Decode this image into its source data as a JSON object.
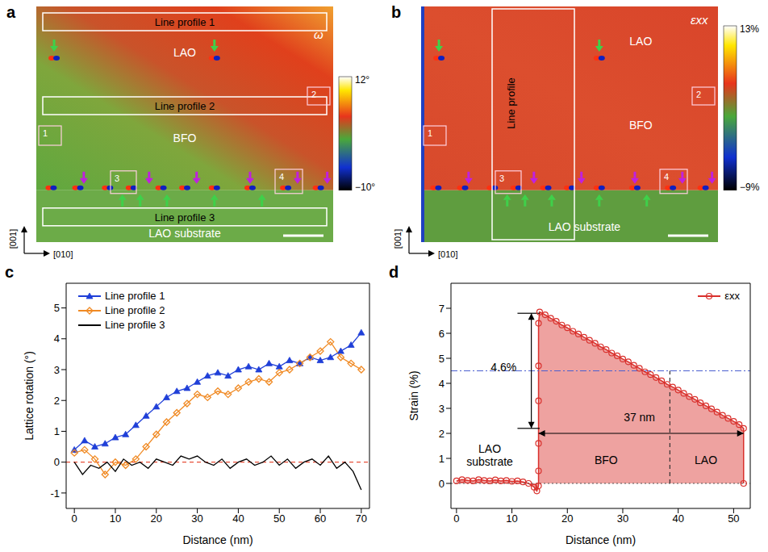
{
  "maps": [
    {
      "panel": "a",
      "colorbar": {
        "label": "ω",
        "range": [
          -10,
          12
        ],
        "ticks": [
          {
            "value": 12,
            "label": "12°"
          },
          {
            "value": -10,
            "label": "−10°"
          }
        ]
      },
      "line_profiles": [
        "Line profile 1",
        "Line profile 2",
        "Line profile 3"
      ],
      "regions": [
        "LAO",
        "BFO",
        "LAO substrate"
      ],
      "boxes": [
        "1",
        "2",
        "3",
        "4"
      ],
      "directions": [
        "[001]",
        "[010]"
      ]
    },
    {
      "panel": "b",
      "colorbar": {
        "label": "εxx",
        "range": [
          -9,
          13
        ],
        "ticks": [
          {
            "value": 13,
            "label": "13%"
          },
          {
            "value": -9,
            "label": "−9%"
          }
        ]
      },
      "line_profiles": [
        "Line profile"
      ],
      "regions": [
        "LAO",
        "BFO",
        "LAO substrate"
      ],
      "boxes": [
        "1",
        "2",
        "3",
        "4"
      ],
      "directions": [
        "[001]",
        "[010]"
      ]
    }
  ],
  "chart_data": [
    {
      "panel": "c",
      "type": "line",
      "x_label": "Distance (nm)",
      "y_label": "Lattice rotation (°)",
      "xlim": [
        -2,
        72
      ],
      "xticks": [
        0,
        10,
        20,
        30,
        40,
        50,
        60,
        70
      ],
      "ylim": [
        -1.5,
        5.8
      ],
      "yticks": [
        -1,
        0,
        1,
        2,
        3,
        4,
        5
      ],
      "legend": "upper left",
      "reference_lines": [
        {
          "y": 0,
          "line_style": "dashed",
          "color": "#e8503a"
        }
      ],
      "series": [
        {
          "name": "Line profile 1",
          "color": "#1f3fd8",
          "marker": "triangle",
          "x": [
            0,
            2.5,
            5,
            7.5,
            10,
            12.5,
            15,
            17.5,
            20,
            22.5,
            25,
            27.5,
            30,
            32.5,
            35,
            37.5,
            40,
            42.5,
            45,
            47.5,
            50,
            52.5,
            55,
            57.5,
            60,
            62.5,
            65,
            67.5,
            70
          ],
          "values": [
            0.4,
            0.7,
            0.5,
            0.6,
            0.8,
            0.9,
            1.2,
            1.5,
            1.8,
            2.1,
            2.3,
            2.4,
            2.6,
            2.8,
            2.9,
            2.8,
            3.0,
            3.1,
            3.0,
            3.2,
            3.1,
            3.3,
            3.2,
            3.4,
            3.3,
            3.4,
            3.6,
            3.8,
            4.2
          ]
        },
        {
          "name": "Line profile 2",
          "color": "#f08a24",
          "marker": "diamond",
          "x": [
            0,
            2.5,
            5,
            7.5,
            10,
            12.5,
            15,
            17.5,
            20,
            22.5,
            25,
            27.5,
            30,
            32.5,
            35,
            37.5,
            40,
            42.5,
            45,
            47.5,
            50,
            52.5,
            55,
            57.5,
            60,
            62.5,
            65,
            67.5,
            70
          ],
          "values": [
            0.3,
            0.4,
            0.1,
            -0.4,
            0.0,
            -0.1,
            0.1,
            0.5,
            0.9,
            1.3,
            1.6,
            1.9,
            2.2,
            2.1,
            2.3,
            2.2,
            2.4,
            2.6,
            2.7,
            2.6,
            2.9,
            3.0,
            3.2,
            3.4,
            3.6,
            3.9,
            3.4,
            3.2,
            3.0
          ]
        },
        {
          "name": "Line profile 3",
          "color": "#000000",
          "marker": "none",
          "x": [
            0,
            2,
            4,
            6,
            8,
            10,
            12,
            14,
            16,
            18,
            20,
            22,
            24,
            26,
            28,
            30,
            32,
            34,
            36,
            38,
            40,
            42,
            44,
            46,
            48,
            50,
            52,
            54,
            56,
            58,
            60,
            62,
            64,
            66,
            68,
            70
          ],
          "values": [
            0,
            -0.4,
            -0.1,
            -0.2,
            0.0,
            -0.3,
            0.1,
            -0.1,
            0.0,
            -0.2,
            0.1,
            0.0,
            -0.1,
            0.2,
            0.1,
            0.2,
            0.0,
            -0.1,
            0.1,
            -0.2,
            0.0,
            0.1,
            -0.1,
            0.0,
            0.2,
            -0.1,
            0.1,
            -0.2,
            0.0,
            0.1,
            -0.1,
            0.2,
            -0.2,
            0.0,
            -0.3,
            -0.9
          ]
        }
      ]
    },
    {
      "panel": "d",
      "type": "area",
      "x_label": "Distance (nm)",
      "y_label": "Strain (%)",
      "xlim": [
        -1,
        53
      ],
      "xticks": [
        0,
        10,
        20,
        30,
        40,
        50
      ],
      "ylim": [
        -1,
        8
      ],
      "yticks": [
        0,
        1,
        2,
        3,
        4,
        5,
        6,
        7
      ],
      "legend": "upper right",
      "series": [
        {
          "name": "εxx",
          "color": "#d9302c",
          "marker": "circle",
          "x": [
            0,
            1,
            2,
            3,
            4,
            5,
            6,
            7,
            8,
            9,
            10,
            11,
            12,
            13,
            14,
            14.5,
            14.8,
            14.8,
            14.8,
            14.8,
            14.8,
            14.8,
            15,
            16,
            17,
            18,
            19,
            20,
            21,
            22,
            23,
            24,
            25,
            26,
            27,
            28,
            29,
            30,
            31,
            32,
            33,
            34,
            35,
            36,
            37,
            38,
            39,
            40,
            41,
            42,
            43,
            44,
            45,
            46,
            47,
            48,
            49,
            50,
            51,
            51.8,
            51.8
          ],
          "values": [
            0.1,
            0.15,
            0.12,
            0.1,
            0.15,
            0.12,
            0.1,
            0.14,
            0.1,
            0.12,
            0.08,
            0.1,
            0.06,
            0.0,
            -0.15,
            -0.3,
            -0.1,
            0.5,
            1.6,
            3.3,
            4.7,
            6.4,
            6.85,
            6.74,
            6.6,
            6.48,
            6.33,
            6.22,
            6.08,
            5.97,
            5.84,
            5.72,
            5.6,
            5.46,
            5.35,
            5.21,
            5.1,
            4.97,
            4.86,
            4.72,
            4.6,
            4.46,
            4.35,
            4.23,
            4.1,
            3.96,
            3.85,
            3.73,
            3.6,
            3.47,
            3.36,
            3.22,
            3.1,
            2.98,
            2.85,
            2.72,
            2.6,
            2.48,
            2.35,
            2.2,
            0
          ]
        }
      ],
      "reference_lines": [
        {
          "y": 0,
          "line_style": "dotted",
          "color": "#555555"
        },
        {
          "y": 4.5,
          "line_style": "dashdot",
          "color": "#4a5fd0"
        },
        {
          "x": 38.5,
          "y": [
            0,
            4.5
          ],
          "line_style": "dashed",
          "color": "#333333"
        },
        {
          "x": [
            11,
            15
          ],
          "y": 6.8,
          "line_style": "solid",
          "color": "#000000"
        },
        {
          "x": [
            11,
            15
          ],
          "y": 2.2,
          "line_style": "solid",
          "color": "#000000"
        }
      ],
      "arrows": [
        {
          "x": [
            13.5,
            13.5
          ],
          "y": [
            2.2,
            6.8
          ]
        },
        {
          "x": [
            14.8,
            51.8
          ],
          "y": [
            2.0,
            2.0
          ]
        }
      ],
      "annotations": [
        {
          "text": "4.6%",
          "x": 8.5,
          "y": 4.6
        },
        {
          "text": "37 nm",
          "x": 33,
          "y": 2.6
        },
        {
          "text": "LAO substrate",
          "x": 6,
          "y": 1.1
        },
        {
          "text": "BFO",
          "x": 27,
          "y": 0.9
        },
        {
          "text": "LAO",
          "x": 45,
          "y": 0.9
        }
      ]
    }
  ]
}
